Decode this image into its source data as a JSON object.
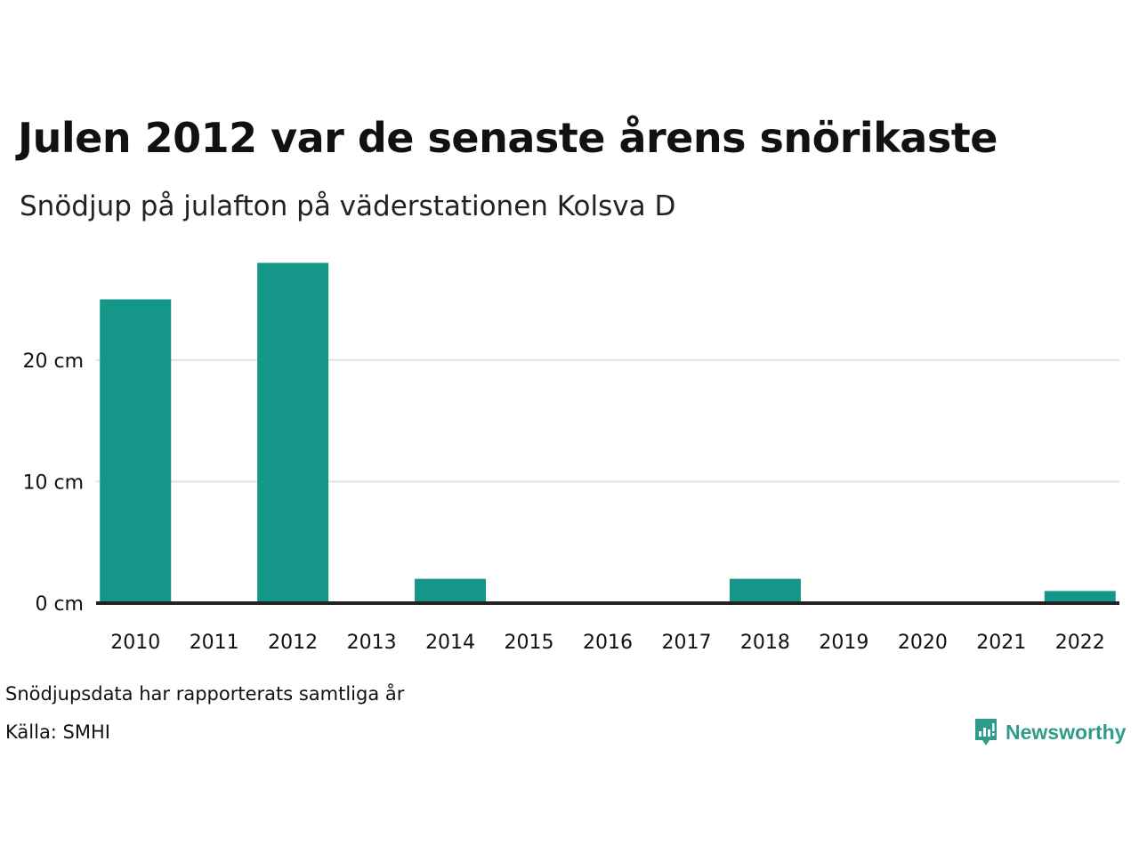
{
  "title": "Julen 2012 var de senaste årens snörikaste",
  "subtitle": "Snödjup på julafton på väderstationen Kolsva D",
  "footer": {
    "note": "Snödjupsdata har rapporterats samtliga år",
    "source": "Källa: SMHI"
  },
  "logo": {
    "text": "Newsworthy",
    "icon": "newsworthy-logo-icon",
    "color": "#2e9c8a"
  },
  "colors": {
    "bar": "#149688",
    "grid": "#e2e2e2",
    "baseline": "#222222",
    "text": "#111111"
  },
  "chart_data": {
    "type": "bar",
    "categories": [
      "2010",
      "2011",
      "2012",
      "2013",
      "2014",
      "2015",
      "2016",
      "2017",
      "2018",
      "2019",
      "2020",
      "2021",
      "2022"
    ],
    "values": [
      25,
      0,
      28,
      0,
      2,
      0,
      0,
      0,
      2,
      0,
      0,
      0,
      1
    ],
    "unit": "cm",
    "y_ticks": [
      0,
      10,
      20
    ],
    "y_tick_labels": [
      "0 cm",
      "10 cm",
      "20 cm"
    ],
    "ylim": [
      0,
      28
    ],
    "xlabel": "",
    "ylabel": "",
    "grid": true,
    "legend": "none"
  }
}
